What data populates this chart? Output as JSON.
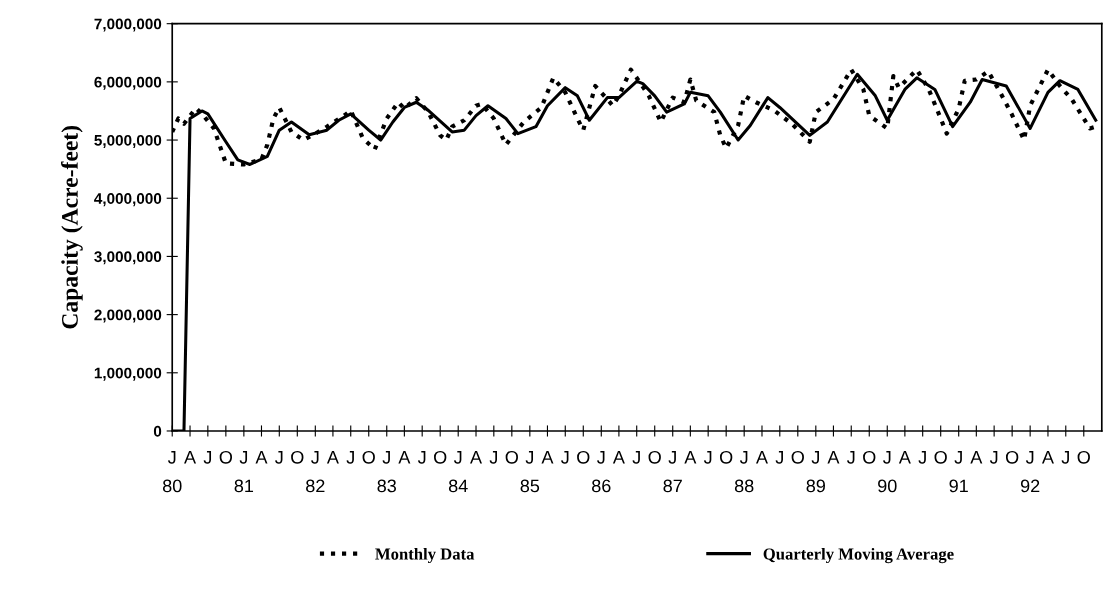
{
  "chart_data": {
    "type": "line",
    "ylabel": "Capacity (Acre-feet)",
    "xlim": [
      "1980-01",
      "1993-01"
    ],
    "ylim": [
      0,
      7000000
    ],
    "yticks": [
      {
        "value": 0,
        "label": "0"
      },
      {
        "value": 1000000,
        "label": "1,000,000"
      },
      {
        "value": 2000000,
        "label": "2,000,000"
      },
      {
        "value": 3000000,
        "label": "3,000,000"
      },
      {
        "value": 4000000,
        "label": "4,000,000"
      },
      {
        "value": 5000000,
        "label": "5,000,000"
      },
      {
        "value": 6000000,
        "label": "6,000,000"
      },
      {
        "value": 7000000,
        "label": "7,000,000"
      }
    ],
    "xticks": [
      {
        "value": "1980-01",
        "label": "J\n80"
      },
      {
        "value": "1980-04",
        "label": "A"
      },
      {
        "value": "1980-07",
        "label": "J"
      },
      {
        "value": "1980-10",
        "label": "O"
      },
      {
        "value": "1981-01",
        "label": "J\n81"
      },
      {
        "value": "1981-04",
        "label": "A"
      },
      {
        "value": "1981-07",
        "label": "J"
      },
      {
        "value": "1981-10",
        "label": "O"
      },
      {
        "value": "1982-01",
        "label": "J\n82"
      },
      {
        "value": "1982-04",
        "label": "A"
      },
      {
        "value": "1982-07",
        "label": "J"
      },
      {
        "value": "1982-10",
        "label": "O"
      },
      {
        "value": "1983-01",
        "label": "J\n83"
      },
      {
        "value": "1983-04",
        "label": "A"
      },
      {
        "value": "1983-07",
        "label": "J"
      },
      {
        "value": "1983-10",
        "label": "O"
      },
      {
        "value": "1984-01",
        "label": "J\n84"
      },
      {
        "value": "1984-04",
        "label": "A"
      },
      {
        "value": "1984-07",
        "label": "J"
      },
      {
        "value": "1984-10",
        "label": "O"
      },
      {
        "value": "1985-01",
        "label": "J\n85"
      },
      {
        "value": "1985-04",
        "label": "A"
      },
      {
        "value": "1985-07",
        "label": "J"
      },
      {
        "value": "1985-10",
        "label": "O"
      },
      {
        "value": "1986-01",
        "label": "J\n86"
      },
      {
        "value": "1986-04",
        "label": "A"
      },
      {
        "value": "1986-07",
        "label": "J"
      },
      {
        "value": "1986-10",
        "label": "O"
      },
      {
        "value": "1987-01",
        "label": "J\n87"
      },
      {
        "value": "1987-04",
        "label": "A"
      },
      {
        "value": "1987-07",
        "label": "J"
      },
      {
        "value": "1987-10",
        "label": "O"
      },
      {
        "value": "1988-01",
        "label": "J\n88"
      },
      {
        "value": "1988-04",
        "label": "A"
      },
      {
        "value": "1988-07",
        "label": "J"
      },
      {
        "value": "1988-10",
        "label": "O"
      },
      {
        "value": "1989-01",
        "label": "J\n89"
      },
      {
        "value": "1989-04",
        "label": "A"
      },
      {
        "value": "1989-07",
        "label": "J"
      },
      {
        "value": "1989-10",
        "label": "O"
      },
      {
        "value": "1990-01",
        "label": "J\n90"
      },
      {
        "value": "1990-04",
        "label": "A"
      },
      {
        "value": "1990-07",
        "label": "J"
      },
      {
        "value": "1990-10",
        "label": "O"
      },
      {
        "value": "1991-01",
        "label": "J\n91"
      },
      {
        "value": "1991-04",
        "label": "A"
      },
      {
        "value": "1991-07",
        "label": "J"
      },
      {
        "value": "1991-10",
        "label": "O"
      },
      {
        "value": "1992-01",
        "label": "J\n92"
      },
      {
        "value": "1992-04",
        "label": "A"
      },
      {
        "value": "1992-07",
        "label": "J"
      },
      {
        "value": "1992-10",
        "label": "O"
      }
    ],
    "grid": false,
    "legend": "bottom",
    "series": [
      {
        "name": "Monthly Data",
        "color": "#000000",
        "line_style": "dotted",
        "x": [
          "1980-01",
          "1980-02",
          "1980-03",
          "1980-05",
          "1980-06",
          "1980-08",
          "1980-10",
          "1981-01",
          "1981-04",
          "1981-05",
          "1981-06",
          "1981-07",
          "1981-09",
          "1981-11",
          "1982-01",
          "1982-03",
          "1982-06",
          "1982-07",
          "1982-09",
          "1982-11",
          "1983-01",
          "1983-03",
          "1983-04",
          "1983-06",
          "1983-08",
          "1983-10",
          "1983-11",
          "1983-12",
          "1984-02",
          "1984-04",
          "1984-05",
          "1984-07",
          "1984-09",
          "1984-12",
          "1985-03",
          "1985-05",
          "1985-07",
          "1985-09",
          "1985-10",
          "1985-12",
          "1986-02",
          "1986-03",
          "1986-04",
          "1986-06",
          "1986-07",
          "1986-09",
          "1986-11",
          "1987-01",
          "1987-03",
          "1987-04",
          "1987-05",
          "1987-08",
          "1987-09",
          "1987-10",
          "1987-12",
          "1988-01",
          "1988-03",
          "1988-06",
          "1988-09",
          "1988-12",
          "1989-01",
          "1989-04",
          "1989-07",
          "1989-09",
          "1989-10",
          "1990-01",
          "1990-02",
          "1990-03",
          "1990-06",
          "1990-08",
          "1990-10",
          "1990-11",
          "1991-01",
          "1991-02",
          "1991-04",
          "1991-06",
          "1991-08",
          "1991-10",
          "1991-12",
          "1992-01",
          "1992-04",
          "1992-06",
          "1992-08",
          "1992-11",
          "1992-12"
        ],
        "values": [
          5140000,
          5370000,
          5280000,
          5550000,
          5450000,
          5200000,
          4600000,
          4580000,
          4670000,
          4920000,
          5370000,
          5560000,
          5140000,
          5000000,
          5110000,
          5230000,
          5430000,
          5510000,
          5030000,
          4840000,
          5370000,
          5650000,
          5540000,
          5720000,
          5480000,
          5080000,
          5000000,
          5230000,
          5340000,
          5590000,
          5620000,
          5370000,
          4920000,
          5310000,
          5560000,
          6070000,
          5820000,
          5370000,
          5170000,
          5930000,
          5700000,
          5590000,
          5760000,
          6210000,
          6070000,
          5760000,
          5310000,
          5730000,
          5650000,
          6040000,
          5680000,
          5480000,
          5080000,
          4860000,
          5250000,
          5760000,
          5650000,
          5510000,
          5280000,
          4970000,
          5480000,
          5700000,
          6210000,
          5870000,
          5420000,
          5200000,
          6100000,
          5900000,
          6210000,
          5870000,
          5370000,
          5110000,
          5540000,
          6020000,
          6040000,
          6180000,
          5820000,
          5430000,
          5000000,
          5590000,
          6210000,
          5930000,
          5700000,
          5200000,
          5230000
        ]
      },
      {
        "name": "Quarterly Moving Average",
        "color": "#000000",
        "line_style": "solid",
        "x": [
          "1980-01",
          "1980-02",
          "1980-03",
          "1980-04",
          "1980-06",
          "1980-07",
          "1980-10",
          "1980-12",
          "1981-02",
          "1981-05",
          "1981-07",
          "1981-09",
          "1981-12",
          "1982-03",
          "1982-05",
          "1982-07",
          "1982-10",
          "1982-12",
          "1983-02",
          "1983-04",
          "1983-06",
          "1983-08",
          "1983-12",
          "1984-02",
          "1984-04",
          "1984-06",
          "1984-09",
          "1984-11",
          "1985-02",
          "1985-04",
          "1985-07",
          "1985-09",
          "1985-11",
          "1986-02",
          "1986-04",
          "1986-07",
          "1986-08",
          "1986-10",
          "1986-12",
          "1987-03",
          "1987-04",
          "1987-07",
          "1987-09",
          "1987-12",
          "1988-02",
          "1988-05",
          "1988-07",
          "1988-12",
          "1989-03",
          "1989-08",
          "1989-11",
          "1990-01",
          "1990-04",
          "1990-06",
          "1990-09",
          "1990-12",
          "1991-03",
          "1991-05",
          "1991-09",
          "1992-01",
          "1992-04",
          "1992-06",
          "1992-09",
          "1992-12"
        ],
        "values": [
          0,
          0,
          0,
          5370000,
          5500000,
          5450000,
          4970000,
          4660000,
          4580000,
          4720000,
          5170000,
          5310000,
          5090000,
          5170000,
          5340000,
          5450000,
          5170000,
          5000000,
          5310000,
          5560000,
          5650000,
          5510000,
          5140000,
          5170000,
          5420000,
          5590000,
          5370000,
          5110000,
          5230000,
          5590000,
          5900000,
          5760000,
          5340000,
          5730000,
          5730000,
          6010000,
          5970000,
          5760000,
          5480000,
          5620000,
          5820000,
          5760000,
          5480000,
          5000000,
          5250000,
          5730000,
          5560000,
          5080000,
          5310000,
          6130000,
          5760000,
          5340000,
          5870000,
          6070000,
          5870000,
          5230000,
          5650000,
          6040000,
          5930000,
          5200000,
          5820000,
          6020000,
          5870000,
          5340000
        ]
      }
    ]
  }
}
